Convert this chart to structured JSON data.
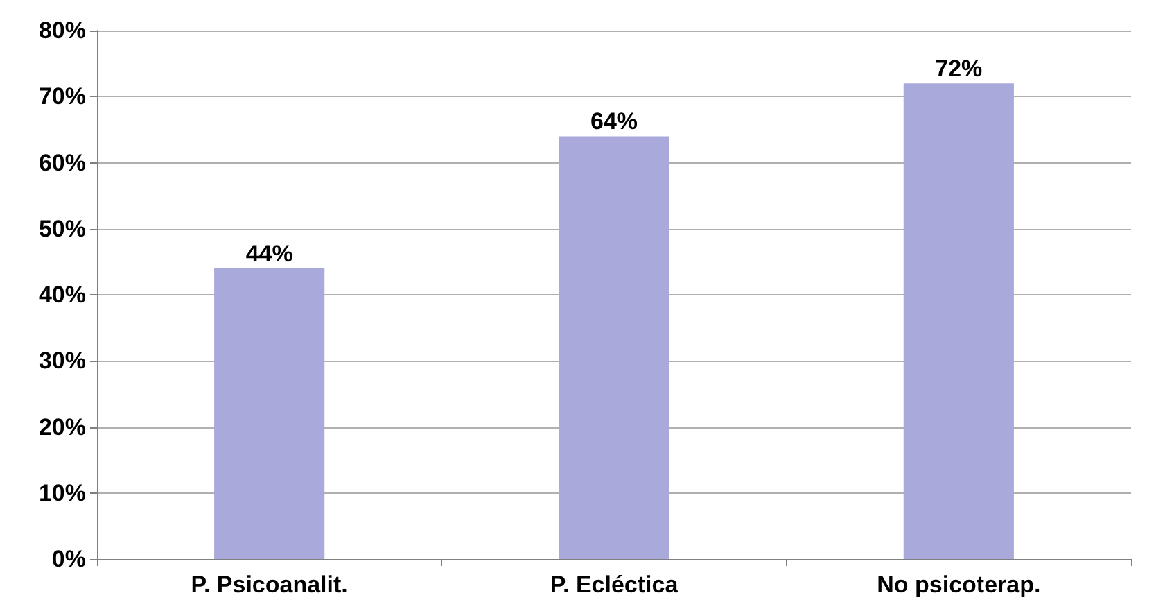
{
  "chart_data": {
    "type": "bar",
    "categories": [
      "P. Psicoanalit.",
      "P. Ecléctica",
      "No psicoterap."
    ],
    "values": [
      44,
      64,
      72
    ],
    "value_labels": [
      "44%",
      "64%",
      "72%"
    ],
    "color": "#a9a9dc",
    "ylim": [
      0,
      80
    ],
    "yticks": [
      {
        "value": 0,
        "label": "0%"
      },
      {
        "value": 10,
        "label": "10%"
      },
      {
        "value": 20,
        "label": "20%"
      },
      {
        "value": 30,
        "label": "30%"
      },
      {
        "value": 40,
        "label": "40%"
      },
      {
        "value": 50,
        "label": "50%"
      },
      {
        "value": 60,
        "label": "60%"
      },
      {
        "value": 70,
        "label": "70%"
      },
      {
        "value": 80,
        "label": "80%"
      }
    ],
    "grid": "y"
  }
}
